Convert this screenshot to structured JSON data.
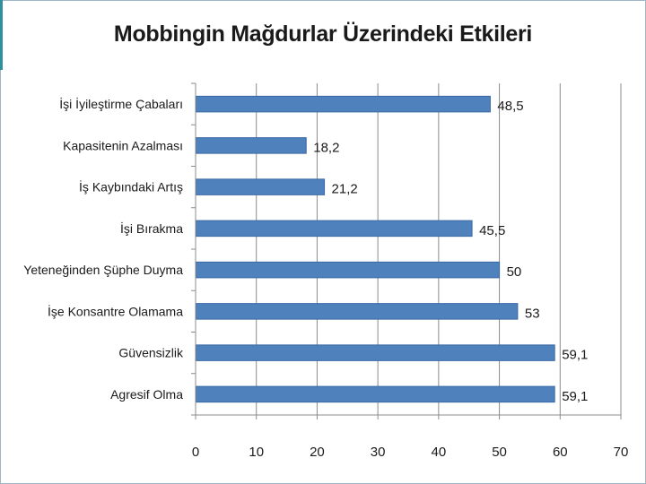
{
  "slide": {
    "accent_color": "#2f8f9e"
  },
  "chart_data": {
    "type": "bar",
    "orientation": "horizontal",
    "title": "Mobbingin Mağdurlar Üzerindeki Etkileri",
    "categories": [
      "İşi İyileştirme Çabaları",
      "Kapasitenin Azalması",
      "İş Kaybındaki Artış",
      "İşi Bırakma",
      "Yeteneğinden Şüphe Duyma",
      "İşe Konsantre Olamama",
      "Güvensizlik",
      "Agresif Olma"
    ],
    "values": [
      48.5,
      18.2,
      21.2,
      45.5,
      50,
      53,
      59.1,
      59.1
    ],
    "value_labels": [
      "48,5",
      "18,2",
      "21,2",
      "45,5",
      "50",
      "53",
      "59,1",
      "59,1"
    ],
    "xlim": [
      0,
      70
    ],
    "x_ticks": [
      "0",
      "10",
      "20",
      "30",
      "40",
      "50",
      "60",
      "70"
    ],
    "grid": true,
    "legend": false,
    "bar_color": "#4f81bd",
    "bar_edge_color": "#3a6aa5",
    "grid_color": "#8c8c8c"
  }
}
